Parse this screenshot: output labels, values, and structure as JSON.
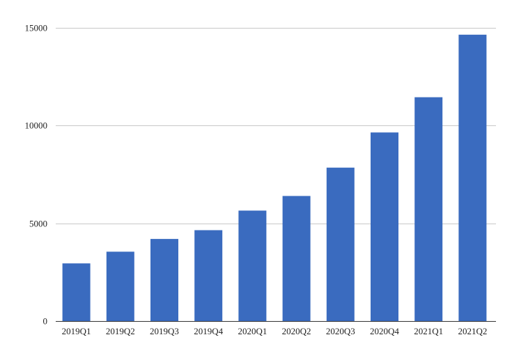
{
  "chart_data": {
    "type": "bar",
    "title": "",
    "xlabel": "",
    "ylabel": "",
    "categories": [
      "2019Q1",
      "2019Q2",
      "2019Q3",
      "2019Q4",
      "2020Q1",
      "2020Q2",
      "2020Q3",
      "2020Q4",
      "2021Q1",
      "2021Q2"
    ],
    "values": [
      2950,
      3550,
      4200,
      4650,
      5650,
      6400,
      7850,
      9650,
      11450,
      14650
    ],
    "ylim": [
      0,
      15000
    ],
    "yticks": [
      0,
      5000,
      10000,
      15000
    ],
    "ytick_labels": [
      "0",
      "5000",
      "10000",
      "15000"
    ],
    "grid": true,
    "legend": "none",
    "bar_color": "#3a6bbf"
  }
}
